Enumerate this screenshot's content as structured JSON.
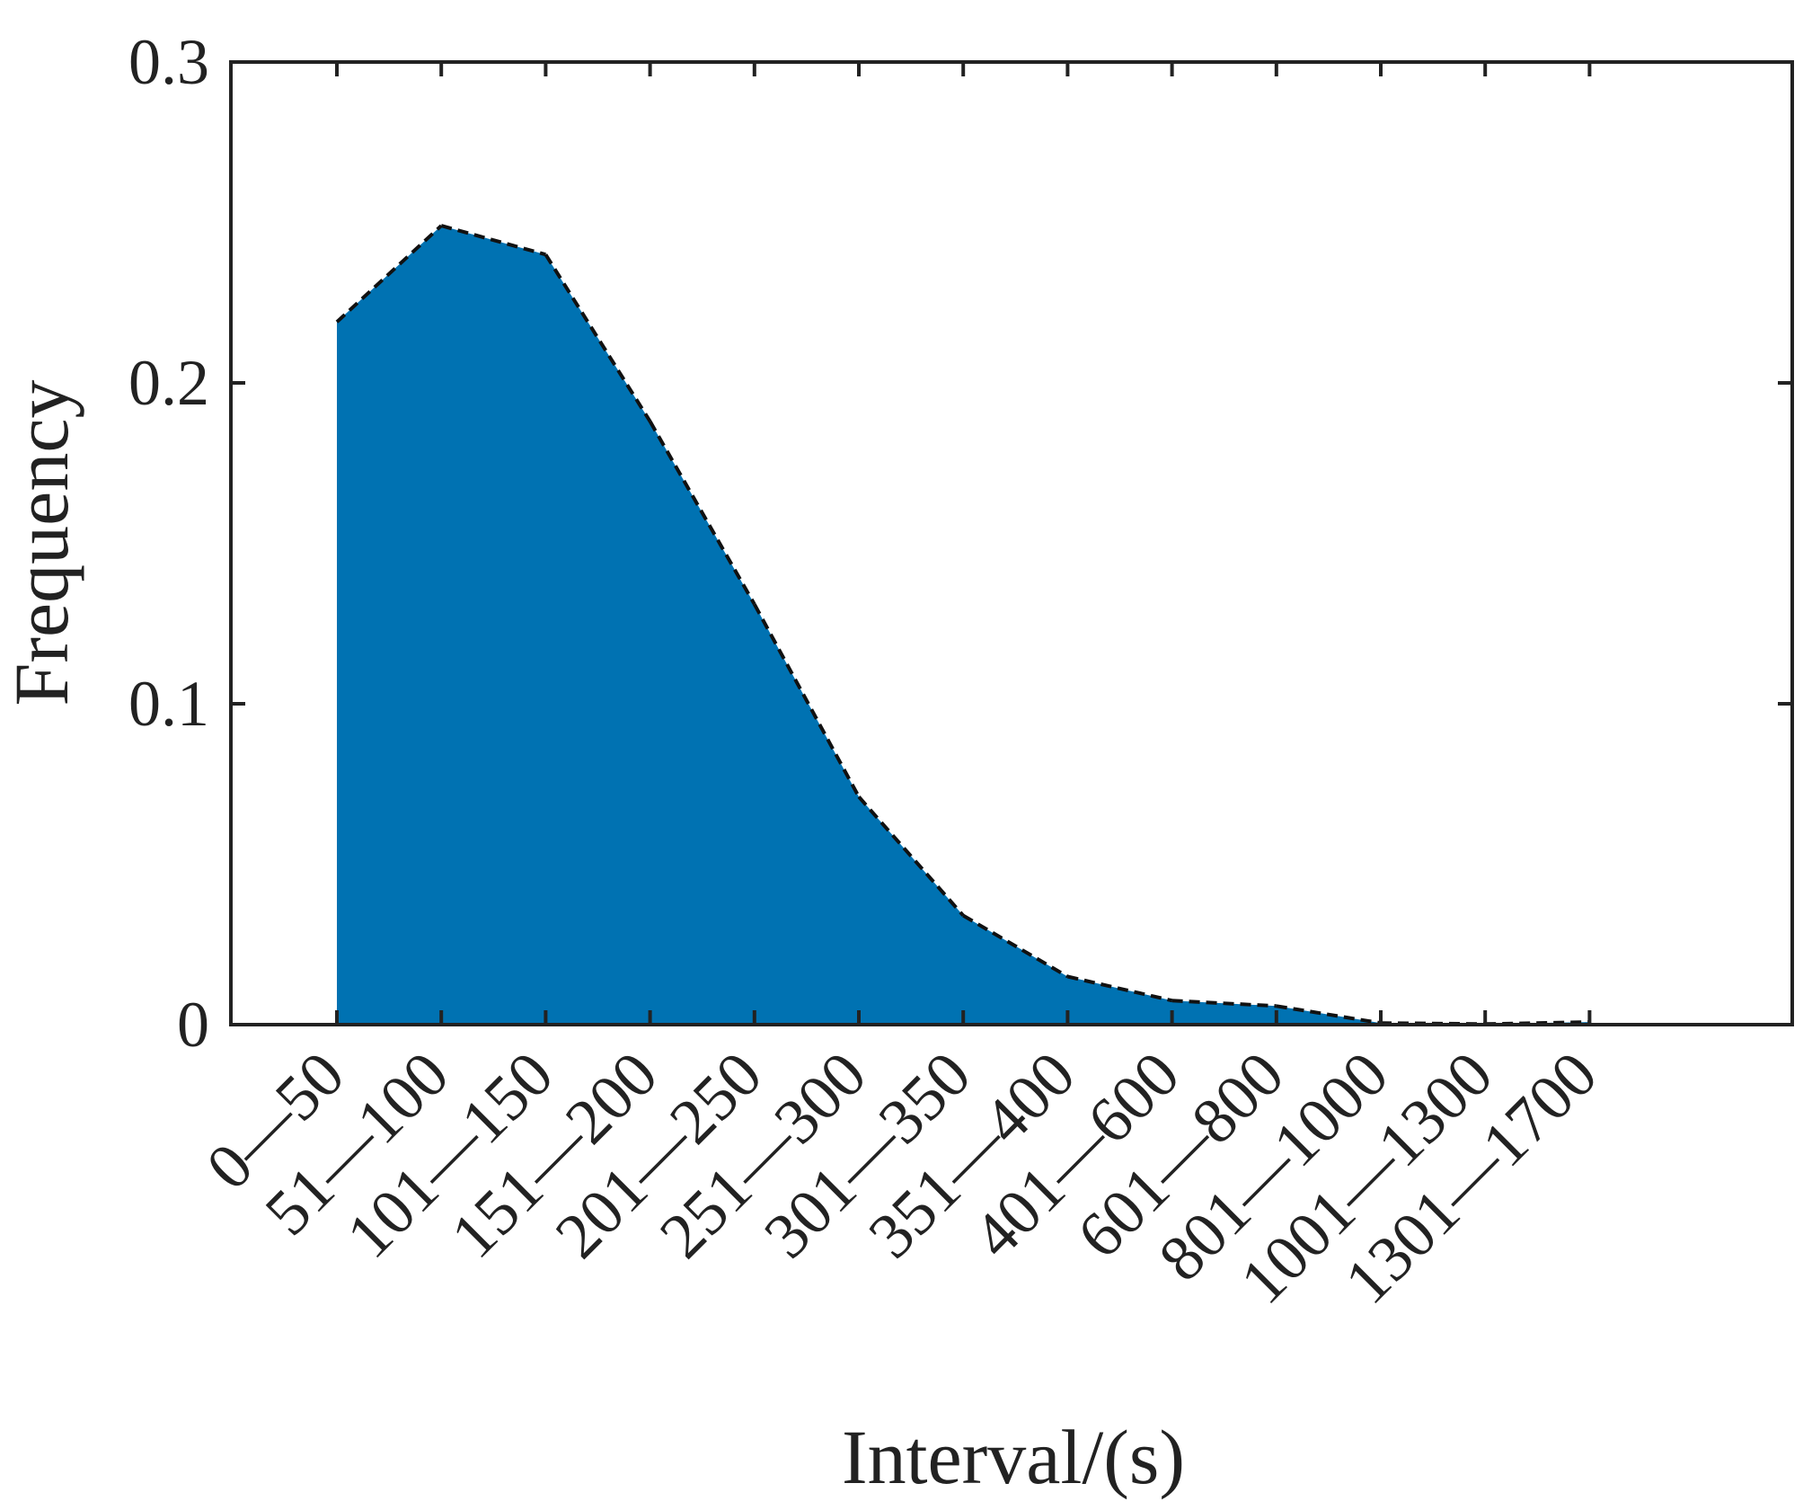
{
  "chart_data": {
    "type": "area",
    "title": "",
    "xlabel": "Interval/(s)",
    "ylabel": "Frequency",
    "categories": [
      "0—50",
      "51—100",
      "101—150",
      "151—200",
      "201—250",
      "251—300",
      "301—350",
      "351—400",
      "401—600",
      "601—800",
      "801—1000",
      "1001—1300",
      "1301—1700"
    ],
    "values": [
      0.219,
      0.249,
      0.24,
      0.188,
      0.131,
      0.071,
      0.034,
      0.015,
      0.0075,
      0.0058,
      0.0005,
      0.0002,
      0.0008
    ],
    "ylim": [
      0,
      0.3
    ],
    "yticks": [
      0,
      0.1,
      0.2,
      0.3
    ],
    "ytick_labels": [
      "0",
      "0.1",
      "0.2",
      "0.3"
    ],
    "grid": false,
    "legend": "none",
    "fill_color": "#0072B2",
    "line_color": "#111111",
    "line_style": "dashed"
  }
}
